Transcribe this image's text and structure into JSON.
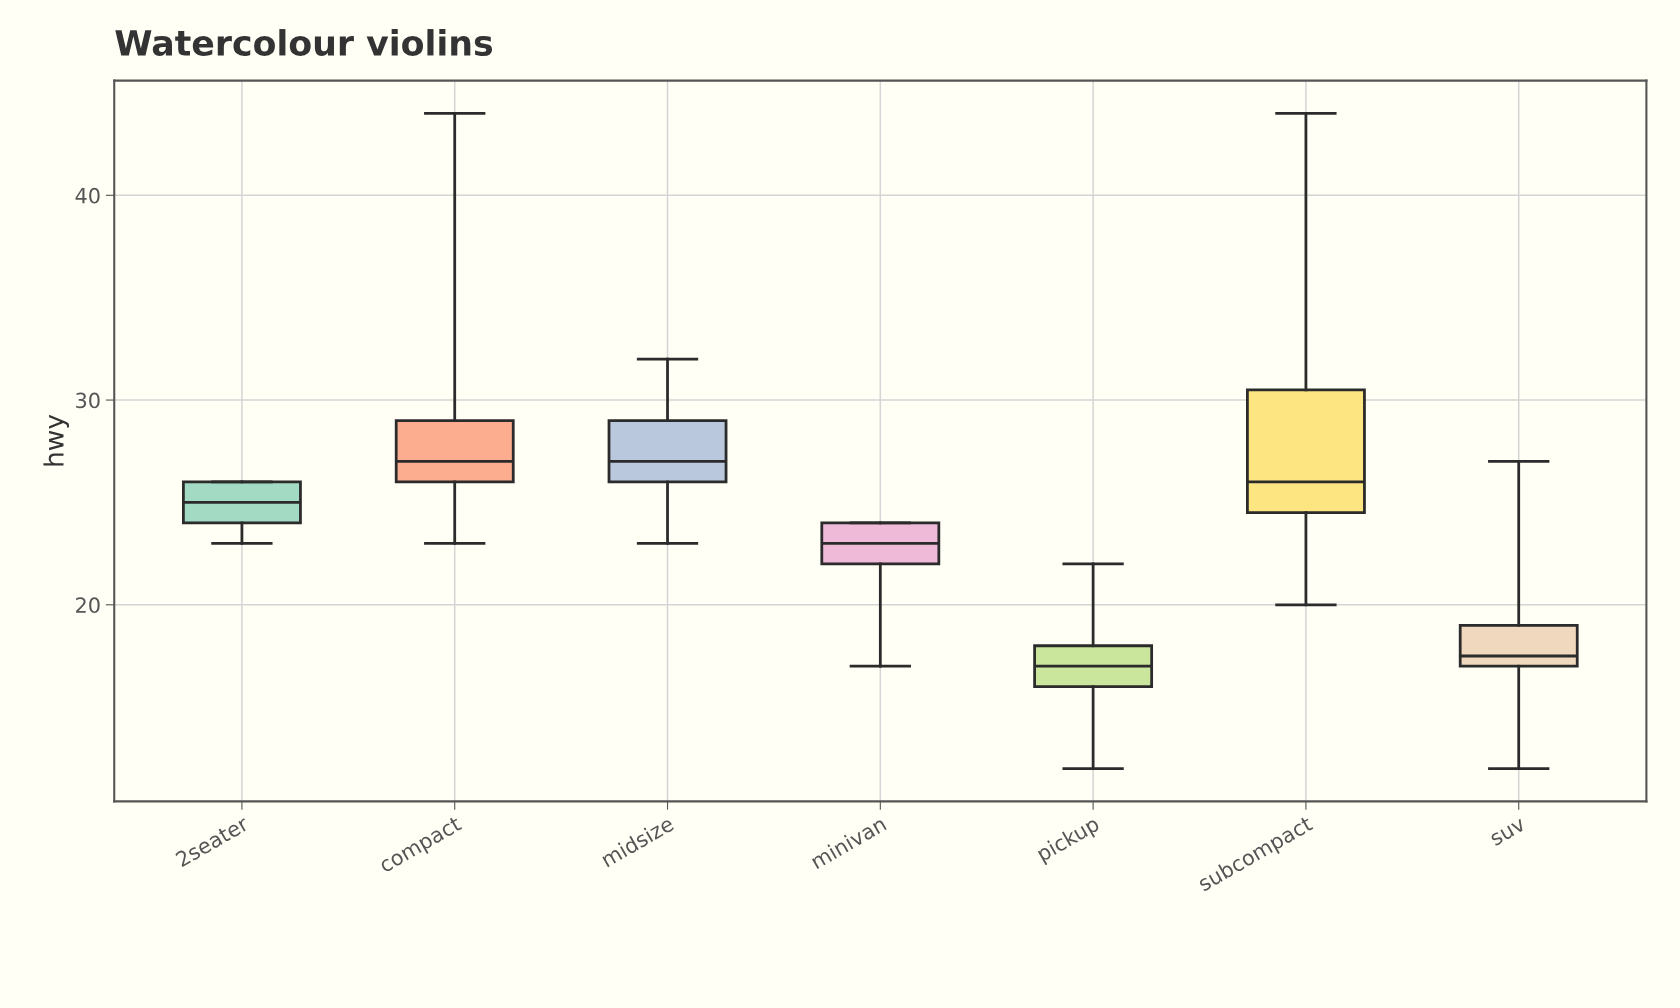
{
  "chart_data": {
    "type": "box",
    "title": "Watercolour violins",
    "ylabel": "hwy",
    "categories": [
      "2seater",
      "compact",
      "midsize",
      "minivan",
      "pickup",
      "subcompact",
      "suv"
    ],
    "boxes": [
      {
        "low": 23,
        "q1": 24,
        "median": 25,
        "q3": 26,
        "high": 26
      },
      {
        "low": 23,
        "q1": 26,
        "median": 27,
        "q3": 29,
        "high": 44
      },
      {
        "low": 23,
        "q1": 26,
        "median": 27,
        "q3": 29,
        "high": 32
      },
      {
        "low": 17,
        "q1": 22,
        "median": 23,
        "q3": 24,
        "high": 24
      },
      {
        "low": 12,
        "q1": 16,
        "median": 17,
        "q3": 18,
        "high": 22
      },
      {
        "low": 20,
        "q1": 24.5,
        "median": 26,
        "q3": 30.5,
        "high": 44
      },
      {
        "low": 12,
        "q1": 17,
        "median": 17.5,
        "q3": 19,
        "high": 27
      }
    ],
    "colors": [
      "#a3dac4",
      "#fcad8f",
      "#bac8dd",
      "#eebad8",
      "#c9e69c",
      "#fde682",
      "#efd8bd"
    ],
    "ylim": [
      10.4,
      45.6
    ],
    "yticks": [
      20,
      30,
      40
    ],
    "grid": true
  }
}
